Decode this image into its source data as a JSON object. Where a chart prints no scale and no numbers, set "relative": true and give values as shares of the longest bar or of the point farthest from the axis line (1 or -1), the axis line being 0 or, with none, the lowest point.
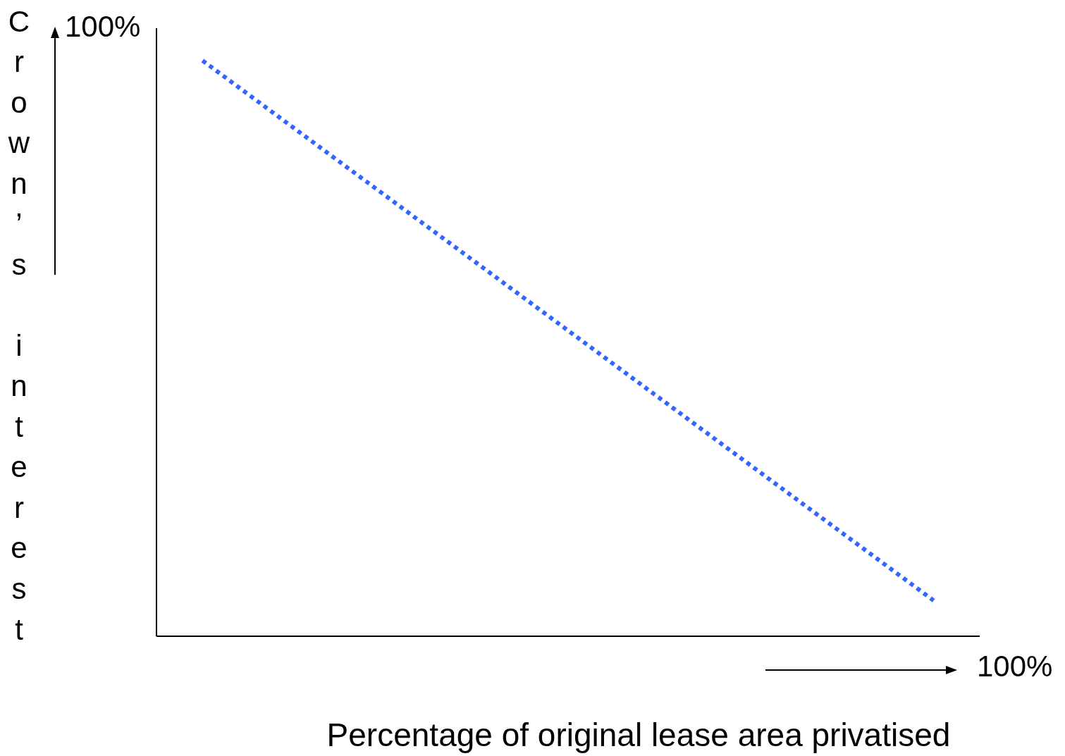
{
  "chart_data": {
    "type": "line",
    "relative": true,
    "xlabel": "Percentage of original lease area privatised",
    "ylabel": "Crown’s interest",
    "categories": [
      null,
      null
    ],
    "series": [
      {
        "color": "#3366ff",
        "values": [
          1,
          0.062
        ]
      }
    ],
    "line_style": "dotted",
    "annotations": [
      "100%",
      "100%"
    ]
  }
}
